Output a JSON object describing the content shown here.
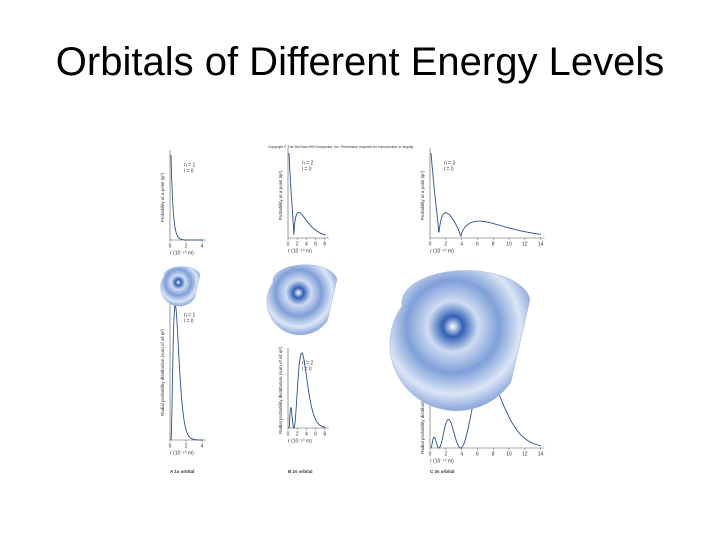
{
  "title": "Orbitals of Different Energy Levels",
  "figure": {
    "copyright": "Copyright © The McGraw-Hill Companies, Inc. Permission required for reproduction or display.",
    "panels": [
      {
        "top": {
          "y_label": "Probability at a point (ψ²)",
          "n": "n = 1",
          "l": "l = 0",
          "ticks": [
            0,
            2,
            4
          ],
          "x_label": "r (10⁻¹⁰ m)"
        },
        "bottom": {
          "y_label": "Radial probability distribution (sum of all ψ²)",
          "n": "n = 1",
          "l": "l = 0",
          "ticks": [
            0,
            2,
            4
          ],
          "x_label": "r (10⁻¹⁰ m)"
        },
        "caption": "A  1s orbital"
      },
      {
        "top": {
          "y_label": "Probability at a point (ψ²)",
          "n": "n = 2",
          "l": "l = 0",
          "ticks": [
            0,
            2,
            4,
            6,
            8
          ],
          "x_label": "r (10⁻¹⁰ m)"
        },
        "bottom": {
          "y_label": "Radial probability distribution (sum of all ψ²)",
          "n": "n = 2",
          "l": "l = 0",
          "ticks": [
            0,
            2,
            4,
            6,
            8
          ],
          "x_label": "r (10⁻¹⁰ m)"
        },
        "caption": "B  2s orbital"
      },
      {
        "top": {
          "y_label": "Probability at a point (ψ²)",
          "n": "n = 3",
          "l": "l = 0",
          "ticks": [
            0,
            2,
            4,
            6,
            8,
            10,
            12,
            14
          ],
          "x_label": "r (10⁻¹⁰ m)"
        },
        "bottom": {
          "y_label": "Radial probability distribution (sum of all ψ²)",
          "n": "n = 3",
          "l": "l = 0",
          "ticks": [
            0,
            2,
            4,
            6,
            8,
            10,
            12,
            14
          ],
          "x_label": "r (10⁻¹⁰ m)"
        },
        "caption": "C  3s orbital"
      }
    ]
  }
}
